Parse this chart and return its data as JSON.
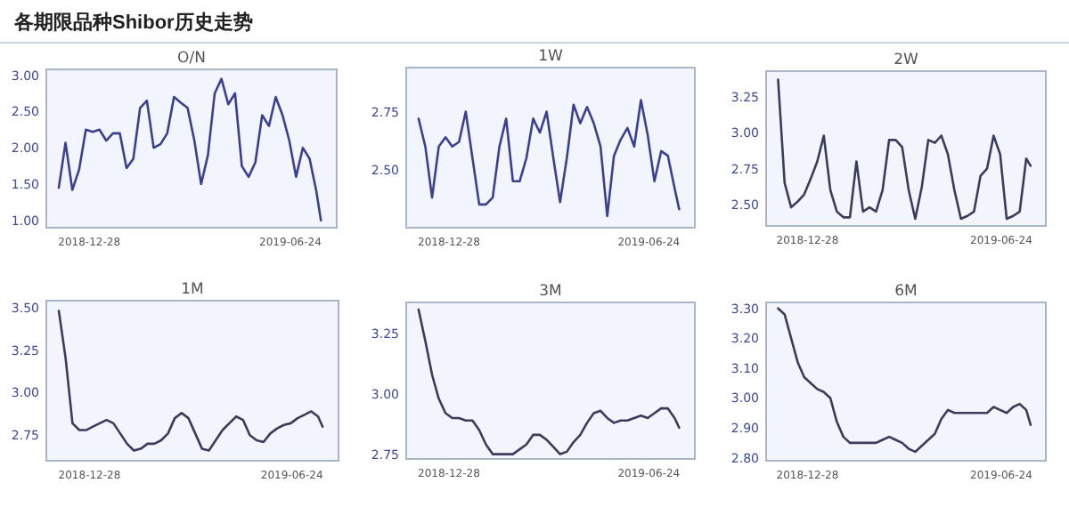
{
  "chart_data": [
    {
      "type": "line",
      "title": "O/N",
      "annotations": [
        "各期限品种Shibor历史走势"
      ],
      "xlim": [
        "2018-11-20",
        "2019-08-04"
      ],
      "xticks": [
        "2018-12-28",
        "2019-06-24"
      ],
      "ylim": [
        0.9,
        3.08
      ],
      "yticks": [
        {
          "value": 1,
          "label": "1.00"
        },
        {
          "value": 1.5,
          "label": "1.50"
        },
        {
          "value": 2,
          "label": "2.00"
        },
        {
          "value": 2.5,
          "label": "2.50"
        },
        {
          "value": 3,
          "label": "3.00"
        }
      ],
      "x": [
        "2018-12-01",
        "2018-12-07",
        "2018-12-13",
        "2018-12-19",
        "2018-12-25",
        "2018-12-31",
        "2019-01-06",
        "2019-01-12",
        "2019-01-18",
        "2019-01-24",
        "2019-01-30",
        "2019-02-05",
        "2019-02-11",
        "2019-02-17",
        "2019-02-23",
        "2019-03-01",
        "2019-03-07",
        "2019-03-13",
        "2019-03-19",
        "2019-03-25",
        "2019-03-31",
        "2019-04-06",
        "2019-04-12",
        "2019-04-18",
        "2019-04-24",
        "2019-04-30",
        "2019-05-06",
        "2019-05-12",
        "2019-05-18",
        "2019-05-24",
        "2019-05-30",
        "2019-06-05",
        "2019-06-11",
        "2019-06-17",
        "2019-06-23",
        "2019-06-29",
        "2019-07-05",
        "2019-07-11",
        "2019-07-17",
        "2019-07-21"
      ],
      "series": [
        {
          "color": "#3d3f8f",
          "values": [
            1.45,
            2.07,
            1.42,
            1.7,
            2.25,
            2.22,
            2.25,
            2.1,
            2.2,
            2.2,
            1.72,
            1.85,
            2.55,
            2.65,
            2.0,
            2.05,
            2.2,
            2.7,
            2.62,
            2.55,
            2.1,
            1.5,
            1.9,
            2.75,
            2.95,
            2.6,
            2.75,
            1.75,
            1.6,
            1.8,
            2.45,
            2.3,
            2.7,
            2.45,
            2.1,
            1.6,
            2.0,
            1.85,
            1.4,
            1.0
          ]
        }
      ]
    },
    {
      "type": "line",
      "title": "1W",
      "xlim": [
        "2018-11-20",
        "2019-08-04"
      ],
      "xticks": [
        "2018-12-28",
        "2019-06-24"
      ],
      "ylim": [
        2.25,
        2.94
      ],
      "yticks": [
        {
          "value": 2.5,
          "label": "2.50"
        },
        {
          "value": 2.75,
          "label": "2.75"
        }
      ],
      "x": [
        "2018-12-01",
        "2018-12-07",
        "2018-12-13",
        "2018-12-19",
        "2018-12-25",
        "2018-12-31",
        "2019-01-06",
        "2019-01-12",
        "2019-01-18",
        "2019-01-24",
        "2019-01-30",
        "2019-02-05",
        "2019-02-11",
        "2019-02-17",
        "2019-02-23",
        "2019-03-01",
        "2019-03-07",
        "2019-03-13",
        "2019-03-19",
        "2019-03-25",
        "2019-03-31",
        "2019-04-06",
        "2019-04-12",
        "2019-04-18",
        "2019-04-24",
        "2019-04-30",
        "2019-05-06",
        "2019-05-12",
        "2019-05-18",
        "2019-05-24",
        "2019-05-30",
        "2019-06-05",
        "2019-06-11",
        "2019-06-17",
        "2019-06-23",
        "2019-06-29",
        "2019-07-05",
        "2019-07-11",
        "2019-07-17",
        "2019-07-21"
      ],
      "series": [
        {
          "color": "#3d3f8f",
          "values": [
            2.72,
            2.6,
            2.38,
            2.6,
            2.64,
            2.6,
            2.62,
            2.75,
            2.55,
            2.35,
            2.35,
            2.38,
            2.6,
            2.72,
            2.45,
            2.45,
            2.55,
            2.72,
            2.66,
            2.75,
            2.55,
            2.36,
            2.55,
            2.78,
            2.7,
            2.77,
            2.7,
            2.6,
            2.3,
            2.56,
            2.63,
            2.68,
            2.6,
            2.8,
            2.65,
            2.45,
            2.58,
            2.56,
            2.42,
            2.33
          ]
        }
      ]
    },
    {
      "type": "line",
      "title": "2W",
      "xlim": [
        "2018-11-20",
        "2019-08-04"
      ],
      "xticks": [
        "2018-12-28",
        "2019-06-24"
      ],
      "ylim": [
        2.35,
        3.43
      ],
      "yticks": [
        {
          "value": 2.5,
          "label": "2.50"
        },
        {
          "value": 2.75,
          "label": "2.75"
        },
        {
          "value": 3,
          "label": "3.00"
        },
        {
          "value": 3.25,
          "label": "3.25"
        }
      ],
      "x": [
        "2018-12-01",
        "2018-12-07",
        "2018-12-13",
        "2018-12-19",
        "2018-12-25",
        "2018-12-31",
        "2019-01-06",
        "2019-01-12",
        "2019-01-18",
        "2019-01-24",
        "2019-01-30",
        "2019-02-05",
        "2019-02-11",
        "2019-02-17",
        "2019-02-23",
        "2019-03-01",
        "2019-03-07",
        "2019-03-13",
        "2019-03-19",
        "2019-03-25",
        "2019-03-31",
        "2019-04-06",
        "2019-04-12",
        "2019-04-18",
        "2019-04-24",
        "2019-04-30",
        "2019-05-06",
        "2019-05-12",
        "2019-05-18",
        "2019-05-24",
        "2019-05-30",
        "2019-06-05",
        "2019-06-11",
        "2019-06-17",
        "2019-06-23",
        "2019-06-29",
        "2019-07-05",
        "2019-07-11",
        "2019-07-17",
        "2019-07-21"
      ],
      "series": [
        {
          "color": "#3a3c5e",
          "values": [
            3.37,
            2.65,
            2.48,
            2.52,
            2.57,
            2.68,
            2.8,
            2.98,
            2.6,
            2.45,
            2.41,
            2.41,
            2.8,
            2.45,
            2.48,
            2.45,
            2.6,
            2.95,
            2.95,
            2.9,
            2.6,
            2.4,
            2.62,
            2.95,
            2.93,
            2.98,
            2.85,
            2.6,
            2.4,
            2.42,
            2.45,
            2.7,
            2.75,
            2.98,
            2.85,
            2.4,
            2.42,
            2.45,
            2.82,
            2.77
          ]
        }
      ]
    },
    {
      "type": "line",
      "title": "1M",
      "xlim": [
        "2018-11-20",
        "2019-08-04"
      ],
      "xticks": [
        "2018-12-28",
        "2019-06-24"
      ],
      "ylim": [
        2.6,
        3.54
      ],
      "yticks": [
        {
          "value": 2.75,
          "label": "2.75"
        },
        {
          "value": 3,
          "label": "3.00"
        },
        {
          "value": 3.25,
          "label": "3.25"
        },
        {
          "value": 3.5,
          "label": "3.50"
        }
      ],
      "x": [
        "2018-12-01",
        "2018-12-07",
        "2018-12-13",
        "2018-12-19",
        "2018-12-25",
        "2018-12-31",
        "2019-01-06",
        "2019-01-12",
        "2019-01-18",
        "2019-01-24",
        "2019-01-30",
        "2019-02-05",
        "2019-02-11",
        "2019-02-17",
        "2019-02-23",
        "2019-03-01",
        "2019-03-07",
        "2019-03-13",
        "2019-03-19",
        "2019-03-25",
        "2019-03-31",
        "2019-04-06",
        "2019-04-12",
        "2019-04-18",
        "2019-04-24",
        "2019-04-30",
        "2019-05-06",
        "2019-05-12",
        "2019-05-18",
        "2019-05-24",
        "2019-05-30",
        "2019-06-05",
        "2019-06-11",
        "2019-06-17",
        "2019-06-23",
        "2019-06-29",
        "2019-07-05",
        "2019-07-11",
        "2019-07-17",
        "2019-07-21"
      ],
      "series": [
        {
          "color": "#3a3c5e",
          "values": [
            3.48,
            3.2,
            2.82,
            2.78,
            2.78,
            2.8,
            2.82,
            2.84,
            2.82,
            2.76,
            2.7,
            2.66,
            2.67,
            2.7,
            2.7,
            2.72,
            2.76,
            2.85,
            2.88,
            2.85,
            2.76,
            2.67,
            2.66,
            2.72,
            2.78,
            2.82,
            2.86,
            2.84,
            2.75,
            2.72,
            2.71,
            2.76,
            2.79,
            2.81,
            2.82,
            2.85,
            2.87,
            2.89,
            2.86,
            2.8
          ]
        }
      ]
    },
    {
      "type": "line",
      "title": "3M",
      "xlim": [
        "2018-11-20",
        "2019-08-04"
      ],
      "xticks": [
        "2018-12-28",
        "2019-06-24"
      ],
      "ylim": [
        2.73,
        3.38
      ],
      "yticks": [
        {
          "value": 2.75,
          "label": "2.75"
        },
        {
          "value": 3,
          "label": "3.00"
        },
        {
          "value": 3.25,
          "label": "3.25"
        }
      ],
      "x": [
        "2018-12-01",
        "2018-12-07",
        "2018-12-13",
        "2018-12-19",
        "2018-12-25",
        "2018-12-31",
        "2019-01-06",
        "2019-01-12",
        "2019-01-18",
        "2019-01-24",
        "2019-01-30",
        "2019-02-05",
        "2019-02-11",
        "2019-02-17",
        "2019-02-23",
        "2019-03-01",
        "2019-03-07",
        "2019-03-13",
        "2019-03-19",
        "2019-03-25",
        "2019-03-31",
        "2019-04-06",
        "2019-04-12",
        "2019-04-18",
        "2019-04-24",
        "2019-04-30",
        "2019-05-06",
        "2019-05-12",
        "2019-05-18",
        "2019-05-24",
        "2019-05-30",
        "2019-06-05",
        "2019-06-11",
        "2019-06-17",
        "2019-06-23",
        "2019-06-29",
        "2019-07-05",
        "2019-07-11",
        "2019-07-17",
        "2019-07-21"
      ],
      "series": [
        {
          "color": "#3a3c5e",
          "values": [
            3.35,
            3.22,
            3.08,
            2.98,
            2.92,
            2.9,
            2.9,
            2.89,
            2.89,
            2.85,
            2.79,
            2.75,
            2.75,
            2.75,
            2.75,
            2.77,
            2.79,
            2.83,
            2.83,
            2.81,
            2.78,
            2.75,
            2.76,
            2.8,
            2.83,
            2.88,
            2.92,
            2.93,
            2.9,
            2.88,
            2.89,
            2.89,
            2.9,
            2.91,
            2.9,
            2.92,
            2.94,
            2.94,
            2.9,
            2.86
          ]
        }
      ]
    },
    {
      "type": "line",
      "title": "6M",
      "xlim": [
        "2018-11-20",
        "2019-08-04"
      ],
      "xticks": [
        "2018-12-28",
        "2019-06-24"
      ],
      "ylim": [
        2.79,
        3.32
      ],
      "yticks": [
        {
          "value": 2.8,
          "label": "2.80"
        },
        {
          "value": 2.9,
          "label": "2.90"
        },
        {
          "value": 3,
          "label": "3.00"
        },
        {
          "value": 3.1,
          "label": "3.10"
        },
        {
          "value": 3.2,
          "label": "3.20"
        },
        {
          "value": 3.3,
          "label": "3.30"
        }
      ],
      "x": [
        "2018-12-01",
        "2018-12-07",
        "2018-12-13",
        "2018-12-19",
        "2018-12-25",
        "2018-12-31",
        "2019-01-06",
        "2019-01-12",
        "2019-01-18",
        "2019-01-24",
        "2019-01-30",
        "2019-02-05",
        "2019-02-11",
        "2019-02-17",
        "2019-02-23",
        "2019-03-01",
        "2019-03-07",
        "2019-03-13",
        "2019-03-19",
        "2019-03-25",
        "2019-03-31",
        "2019-04-06",
        "2019-04-12",
        "2019-04-18",
        "2019-04-24",
        "2019-04-30",
        "2019-05-06",
        "2019-05-12",
        "2019-05-18",
        "2019-05-24",
        "2019-05-30",
        "2019-06-05",
        "2019-06-11",
        "2019-06-17",
        "2019-06-23",
        "2019-06-29",
        "2019-07-05",
        "2019-07-11",
        "2019-07-17",
        "2019-07-21"
      ],
      "series": [
        {
          "color": "#3a3c5e",
          "values": [
            3.3,
            3.28,
            3.2,
            3.12,
            3.07,
            3.05,
            3.03,
            3.02,
            3.0,
            2.92,
            2.87,
            2.85,
            2.85,
            2.85,
            2.85,
            2.85,
            2.86,
            2.87,
            2.86,
            2.85,
            2.83,
            2.82,
            2.84,
            2.86,
            2.88,
            2.93,
            2.96,
            2.95,
            2.95,
            2.95,
            2.95,
            2.95,
            2.95,
            2.97,
            2.96,
            2.95,
            2.97,
            2.98,
            2.96,
            2.91
          ]
        }
      ]
    }
  ]
}
